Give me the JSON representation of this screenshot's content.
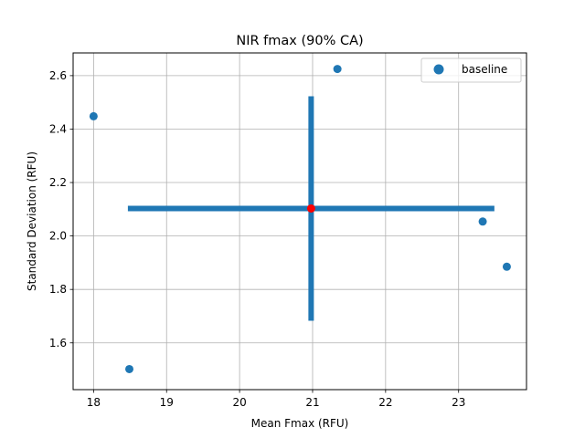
{
  "chart_data": {
    "type": "scatter",
    "title": "NIR fmax (90% CA)",
    "xlabel": "Mean Fmax (RFU)",
    "ylabel": "Standard Deviation (RFU)",
    "xlim": [
      17.72,
      23.93
    ],
    "ylim": [
      1.425,
      2.685
    ],
    "xticks": [
      18,
      19,
      20,
      21,
      22,
      23
    ],
    "yticks": [
      1.6,
      1.8,
      2.0,
      2.2,
      2.4,
      2.6
    ],
    "xtick_labels": [
      "18",
      "19",
      "20",
      "21",
      "22",
      "23"
    ],
    "ytick_labels": [
      "1.6",
      "1.8",
      "2.0",
      "2.2",
      "2.4",
      "2.6"
    ],
    "grid": true,
    "legend_position": "top-right",
    "series": [
      {
        "name": "baseline",
        "color": "#1f77b4",
        "x": [
          18.0,
          18.49,
          21.34,
          23.33,
          23.66
        ],
        "y": [
          2.448,
          1.502,
          2.625,
          2.054,
          1.885
        ]
      }
    ],
    "mean_point": {
      "x": 20.98,
      "y": 2.103,
      "color": "#ff0000"
    },
    "error_bars": {
      "color": "#1f77b4",
      "x_range": [
        18.47,
        23.49
      ],
      "y_range": [
        1.683,
        2.523
      ]
    }
  }
}
